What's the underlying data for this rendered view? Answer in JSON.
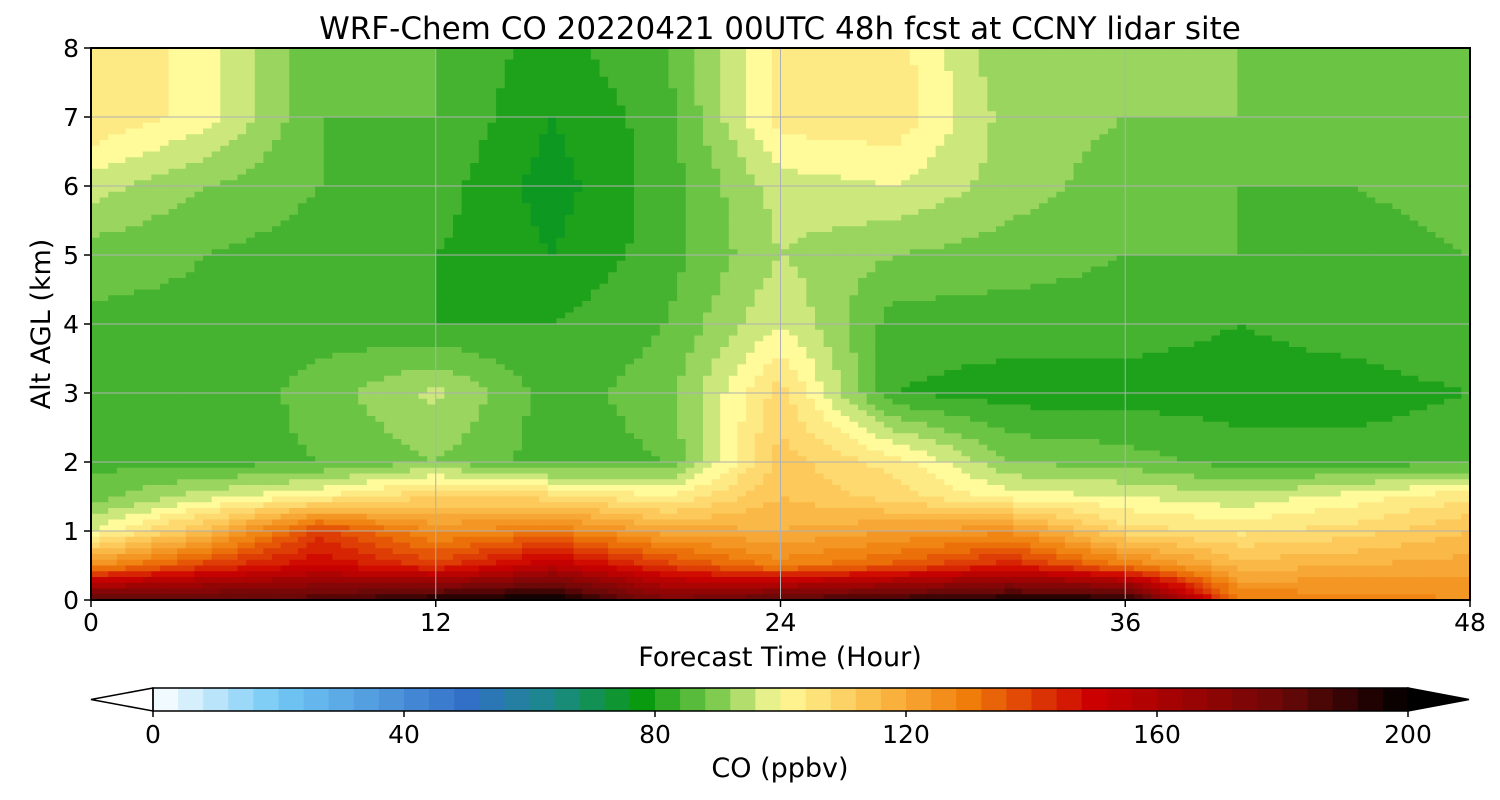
{
  "chart_data": {
    "type": "heatmap",
    "subtype": "filled-contour",
    "title": "WRF-Chem CO  20220421 00UTC 48h fcst at CCNY lidar site",
    "xlabel": "Forecast Time (Hour)",
    "ylabel": "Alt AGL (km)",
    "xlim": [
      0,
      48
    ],
    "ylim": [
      0,
      8
    ],
    "xticks": [
      0,
      12,
      24,
      36,
      48
    ],
    "yticks": [
      0,
      1,
      2,
      3,
      4,
      5,
      6,
      7,
      8
    ],
    "grid": true,
    "colorbar": {
      "label": "CO  (ppbv)",
      "orientation": "horizontal",
      "placement": "bottom",
      "range": [
        0,
        200
      ],
      "ticks": [
        0,
        40,
        80,
        120,
        160,
        200
      ],
      "extend": "both",
      "stops": [
        {
          "value": 0,
          "color": "#ffffff"
        },
        {
          "value": 20,
          "color": "#72c8f5"
        },
        {
          "value": 50,
          "color": "#3270c8"
        },
        {
          "value": 64,
          "color": "#1a8a88"
        },
        {
          "value": 78,
          "color": "#0a9a10"
        },
        {
          "value": 90,
          "color": "#80cc50"
        },
        {
          "value": 100,
          "color": "#fffa9a"
        },
        {
          "value": 115,
          "color": "#fbbd4a"
        },
        {
          "value": 130,
          "color": "#f07c0a"
        },
        {
          "value": 150,
          "color": "#cc0000"
        },
        {
          "value": 180,
          "color": "#6b0808"
        },
        {
          "value": 200,
          "color": "#000000"
        }
      ]
    },
    "x": [
      0,
      4,
      8,
      12,
      16,
      20,
      24,
      28,
      32,
      36,
      40,
      44,
      48
    ],
    "y": [
      0,
      0.5,
      1,
      1.5,
      2,
      3,
      4,
      5,
      6,
      7,
      8
    ],
    "z": [
      [
        185,
        185,
        185,
        195,
        200,
        175,
        185,
        190,
        195,
        195,
        130,
        128,
        126
      ],
      [
        125,
        140,
        150,
        140,
        155,
        140,
        128,
        135,
        145,
        130,
        116,
        118,
        120
      ],
      [
        98,
        115,
        140,
        125,
        130,
        120,
        118,
        122,
        125,
        108,
        105,
        108,
        114
      ],
      [
        88,
        96,
        102,
        110,
        108,
        102,
        114,
        108,
        100,
        98,
        95,
        100,
        105
      ],
      [
        85,
        84,
        86,
        90,
        84,
        86,
        112,
        104,
        90,
        88,
        84,
        84,
        85
      ],
      [
        84,
        82,
        88,
        95,
        84,
        88,
        108,
        82,
        80,
        80,
        80,
        80,
        82
      ],
      [
        85,
        85,
        84,
        82,
        82,
        86,
        98,
        84,
        84,
        84,
        82,
        84,
        86
      ],
      [
        88,
        86,
        84,
        82,
        78,
        84,
        94,
        90,
        88,
        86,
        86,
        84,
        86
      ],
      [
        96,
        90,
        86,
        84,
        76,
        84,
        96,
        98,
        92,
        88,
        86,
        86,
        88
      ],
      [
        106,
        100,
        86,
        86,
        78,
        84,
        104,
        105,
        92,
        90,
        90,
        88,
        88
      ],
      [
        106,
        100,
        86,
        86,
        80,
        86,
        104,
        104,
        90,
        90,
        90,
        90,
        90
      ]
    ]
  }
}
